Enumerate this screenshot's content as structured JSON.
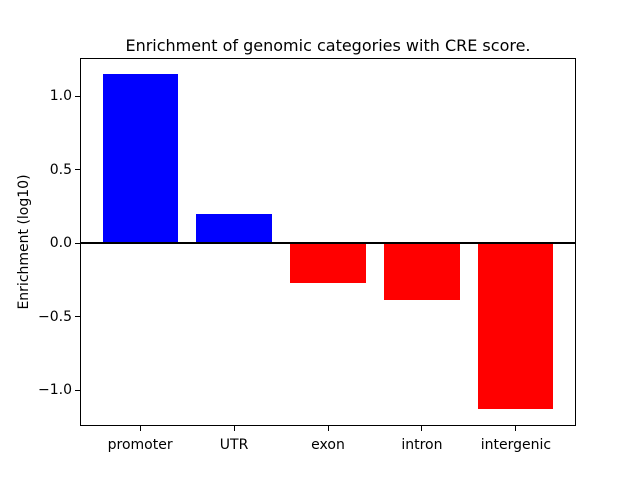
{
  "figure": {
    "background": "#ffffff"
  },
  "chart_data": {
    "type": "bar",
    "title": "Enrichment of genomic categories with CRE score.",
    "xlabel": "",
    "ylabel": "Enrichment (log10)",
    "categories": [
      "promoter",
      "UTR",
      "exon",
      "intron",
      "intergenic"
    ],
    "values": [
      1.15,
      0.2,
      -0.27,
      -0.39,
      -1.13
    ],
    "bar_colors": [
      "#0000ff",
      "#0000ff",
      "#ff0000",
      "#ff0000",
      "#ff0000"
    ],
    "positive_color": "#0000ff",
    "negative_color": "#ff0000",
    "bar_width": 0.8,
    "xlim": [
      -0.64,
      4.64
    ],
    "ylim": [
      -1.245,
      1.26
    ],
    "yticks": [
      -1.0,
      -0.5,
      0.0,
      0.5,
      1.0
    ],
    "ytick_labels": [
      "−1.0",
      "−0.5",
      "0.0",
      "0.5",
      "1.0"
    ],
    "zero_line": true,
    "grid": false,
    "legend": null
  }
}
